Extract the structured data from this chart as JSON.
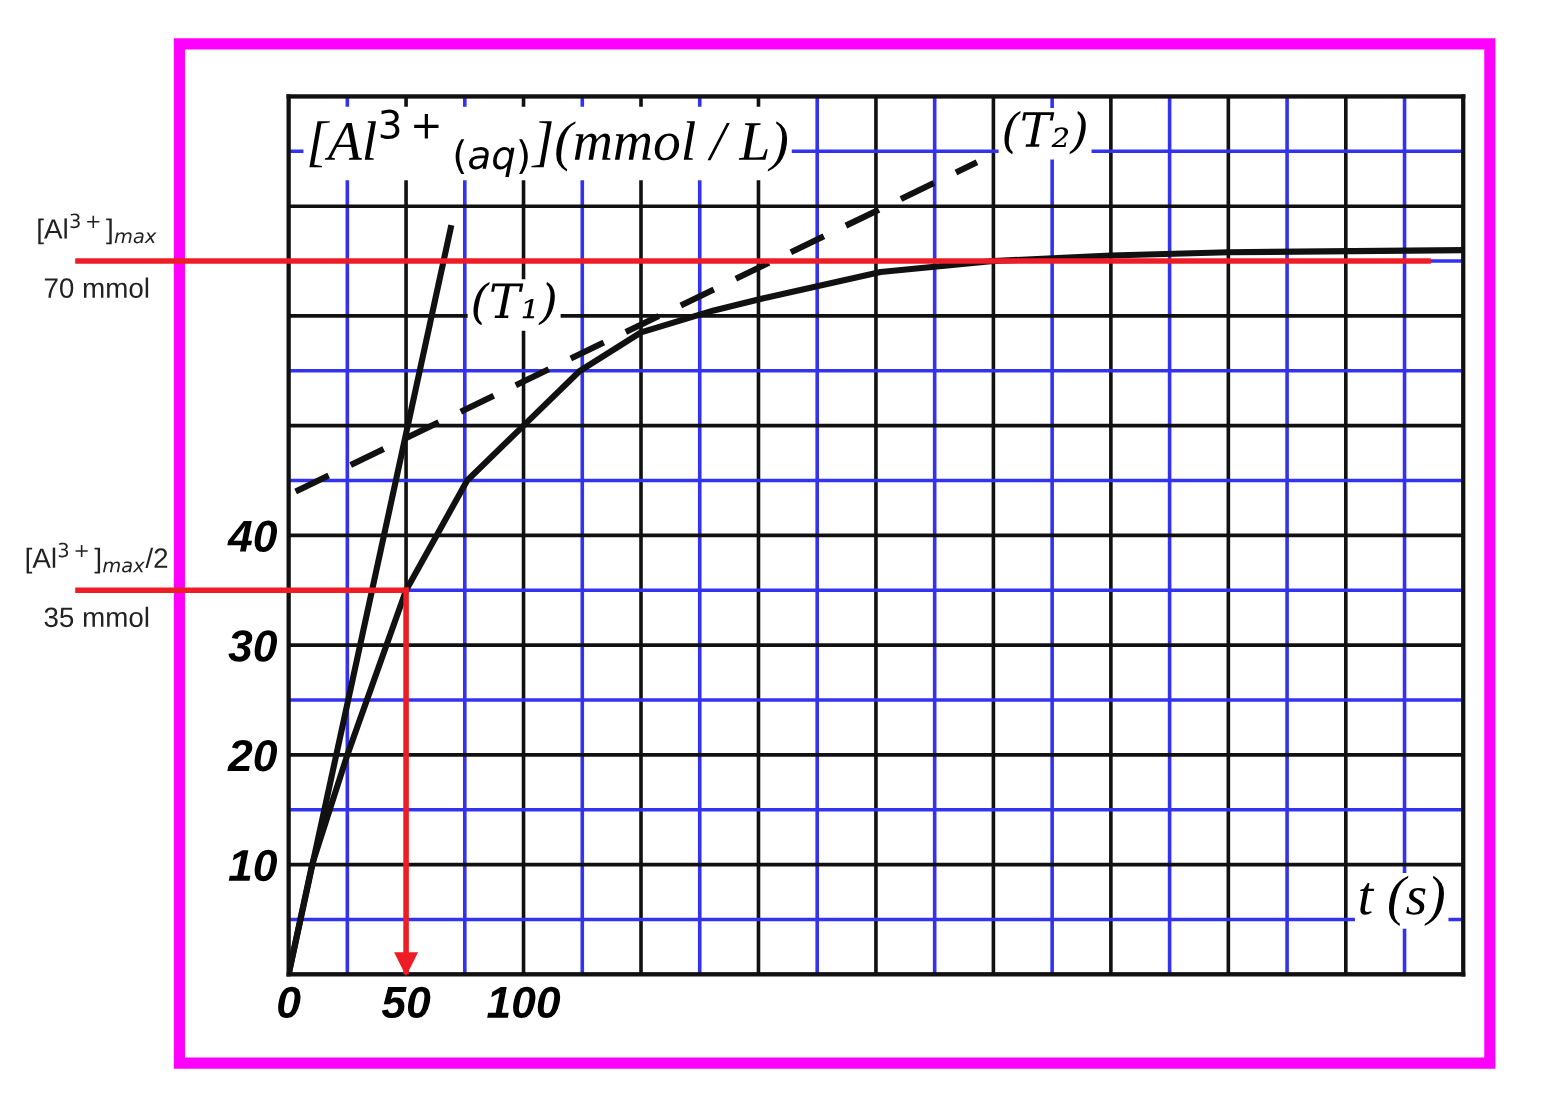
{
  "chart_data": {
    "type": "line",
    "ylabel": "[Al$^{3+}$$_{(aq)}$](mmol / L)",
    "xlabel": "t (s)",
    "xlim": [
      0,
      500
    ],
    "ylim": [
      0,
      80
    ],
    "xticks": [
      0,
      {
        "value": 25,
        "label": null
      },
      50,
      {
        "value": 75,
        "label": null
      },
      100,
      {
        "value": 125,
        "label": null
      },
      {
        "value": 150,
        "label": null
      },
      {
        "value": 175,
        "label": null
      },
      {
        "value": 200,
        "label": null
      },
      {
        "value": 225,
        "label": null
      },
      {
        "value": 250,
        "label": null
      },
      {
        "value": 275,
        "label": null
      },
      {
        "value": 300,
        "label": null
      },
      {
        "value": 325,
        "label": null
      },
      {
        "value": 350,
        "label": null
      },
      {
        "value": 375,
        "label": null
      },
      {
        "value": 400,
        "label": null
      },
      {
        "value": 425,
        "label": null
      },
      {
        "value": 450,
        "label": null
      },
      {
        "value": 475,
        "label": null
      },
      {
        "value": 500,
        "label": null
      }
    ],
    "yticks": [
      {
        "value": 0,
        "label": null
      },
      {
        "value": 5,
        "label": null
      },
      10,
      {
        "value": 15,
        "label": null
      },
      20,
      {
        "value": 25,
        "label": null
      },
      30,
      {
        "value": 35,
        "label": null
      },
      40,
      {
        "value": 45,
        "label": null
      },
      {
        "value": 50,
        "label": null
      },
      {
        "value": 55,
        "label": null
      },
      {
        "value": 60,
        "label": null
      },
      {
        "value": 65,
        "label": null
      },
      {
        "value": 70,
        "label": null
      },
      {
        "value": 75,
        "label": null
      },
      {
        "value": 80,
        "label": null
      }
    ],
    "grid": true,
    "series": [
      {
        "color": "#111111",
        "line_style": "solid",
        "x": [
          0,
          10,
          25,
          50,
          63,
          76,
          100,
          124,
          150,
          181,
          200,
          252,
          300,
          350,
          400,
          500
        ],
        "values": [
          0,
          10,
          20,
          35,
          40,
          45,
          50,
          55,
          58.5,
          60.5,
          61.5,
          64,
          65,
          65.5,
          65.8,
          66
        ]
      },
      {
        "name": "(T₁)",
        "color": "#111111",
        "line_style": "solid",
        "x": [
          0,
          69
        ],
        "values": [
          0,
          68
        ]
      },
      {
        "name": "(T₂)",
        "color": "#111111",
        "line_style": "dashed",
        "x": [
          3,
          293
        ],
        "values": [
          44,
          74
        ]
      }
    ],
    "ref_lines": [
      {
        "axis": "y",
        "value": 65,
        "label": "70 mmol",
        "color": "#ee1c25"
      },
      {
        "axis": "y",
        "value": 35,
        "label": "35 mmol",
        "color": "#ee1c25"
      },
      {
        "axis": "x",
        "value": 50,
        "color": "#ee1c25"
      }
    ],
    "annotations": [
      "[Al$^{3+}$]$_{max}$",
      "[Al$^{3+}$]$_{max}$/2"
    ]
  }
}
